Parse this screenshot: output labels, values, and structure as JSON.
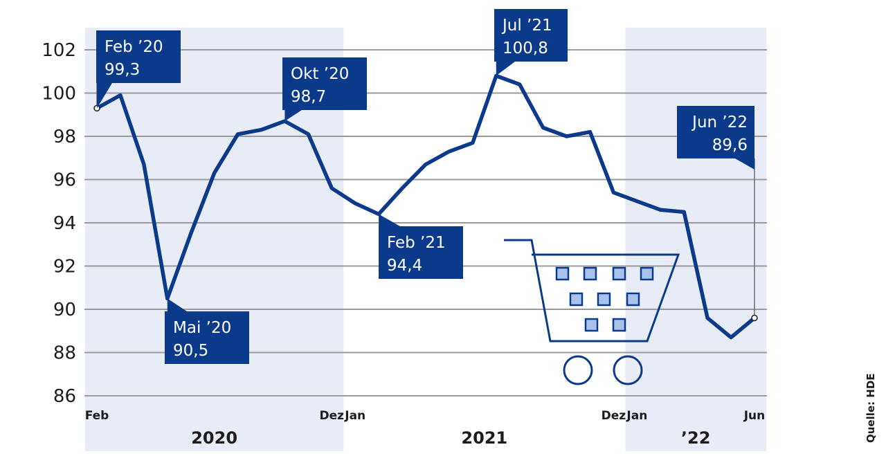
{
  "chart_data": {
    "type": "line",
    "title": "",
    "xlabel": "",
    "ylabel": "",
    "ylim": [
      86,
      103
    ],
    "yticks": [
      86,
      88,
      90,
      92,
      94,
      96,
      98,
      100,
      102
    ],
    "grid": true,
    "source": "Quelle: HDE",
    "x_tick_labels": [
      {
        "label": "Feb",
        "index": 0
      },
      {
        "label": "Dez",
        "index": 10
      },
      {
        "label": "Jan",
        "index": 11
      },
      {
        "label": "Dez",
        "index": 22
      },
      {
        "label": "Jan",
        "index": 23
      },
      {
        "label": "Jun",
        "index": 28
      }
    ],
    "years": [
      {
        "label": "2020",
        "from": 0,
        "to": 10,
        "shaded": true
      },
      {
        "label": "2021",
        "from": 11,
        "to": 22,
        "shaded": false
      },
      {
        "label": "’22",
        "from": 23,
        "to": 28,
        "shaded": true
      }
    ],
    "series": [
      {
        "values": [
          99.3,
          99.9,
          96.7,
          90.5,
          93.5,
          96.3,
          98.1,
          98.3,
          98.7,
          98.1,
          95.6,
          94.9,
          94.4,
          95.6,
          96.7,
          97.3,
          97.7,
          100.8,
          100.4,
          98.4,
          98.0,
          98.2,
          95.4,
          95.0,
          94.6,
          94.5,
          89.6,
          88.7,
          89.6
        ]
      }
    ],
    "annotations": [
      {
        "index": 0,
        "label": "Feb ’20",
        "value": "99,3"
      },
      {
        "index": 3,
        "label": "Mai ’20",
        "value": "90,5"
      },
      {
        "index": 8,
        "label": "Okt ’20",
        "value": "98,7"
      },
      {
        "index": 12,
        "label": "Feb ’21",
        "value": "94,4"
      },
      {
        "index": 17,
        "label": "Jul ’21",
        "value": "100,8"
      },
      {
        "index": 28,
        "label": "Jun ’22",
        "value": "89,6"
      }
    ],
    "colors": {
      "line": "#0b3a8a",
      "callout": "#0b3a8a",
      "shade": "#e8ecf6",
      "grid": "#9a9a9a"
    }
  }
}
